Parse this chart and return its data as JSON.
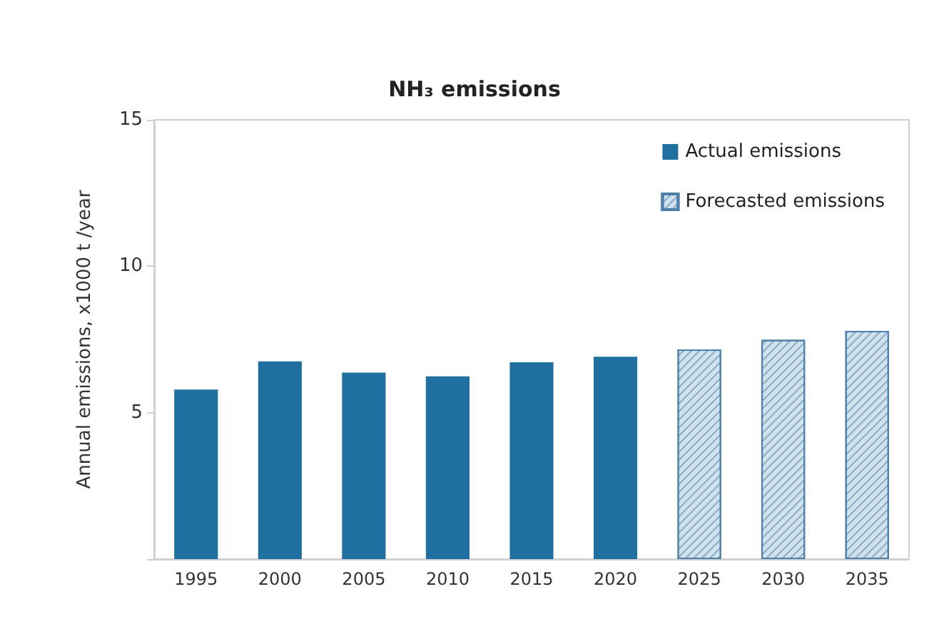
{
  "chart_data": {
    "type": "bar",
    "title": "NH₃ emissions",
    "ylabel": "Annual emissions, x1000 t /year",
    "categories": [
      "1995",
      "2000",
      "2005",
      "2010",
      "2015",
      "2020",
      "2025",
      "2030",
      "2035"
    ],
    "series": [
      {
        "name": "Actual emissions",
        "color": "#1f6fa0",
        "values": [
          5.79,
          6.75,
          6.37,
          6.24,
          6.72,
          6.91,
          null,
          null,
          null
        ]
      },
      {
        "name": "Forecasted emissions",
        "color": "#cfe3ef",
        "values": [
          null,
          null,
          null,
          null,
          null,
          null,
          7.16,
          7.49,
          7.79
        ]
      }
    ],
    "ylim": [
      0,
      15
    ],
    "yticks": [
      {
        "value": 0,
        "label": null
      },
      5,
      10,
      15
    ],
    "grid": false,
    "legend": "top right"
  }
}
